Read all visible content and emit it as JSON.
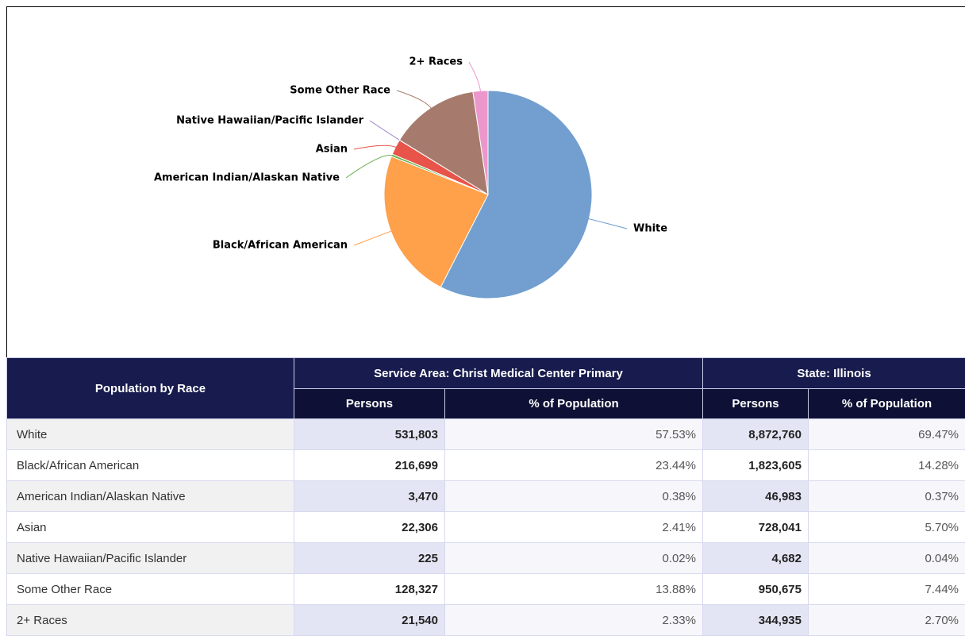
{
  "chart_data": {
    "type": "pie",
    "categories": [
      "White",
      "Black/African American",
      "American Indian/Alaskan Native",
      "Asian",
      "Native Hawaiian/Pacific Islander",
      "Some Other Race",
      "2+ Races"
    ],
    "values": [
      57.53,
      23.44,
      0.38,
      2.41,
      0.02,
      13.88,
      2.33
    ],
    "colors": [
      "#729fcf",
      "#ffa04a",
      "#6ab04c",
      "#e8534a",
      "#9b7fc8",
      "#a67b6d",
      "#ec97cc"
    ]
  },
  "table": {
    "header": {
      "row_label": "Population by Race",
      "groups": [
        "Service Area: Christ Medical Center Primary",
        "State: Illinois"
      ],
      "subheaders": [
        "Persons",
        "% of Population",
        "Persons",
        "% of Population"
      ]
    },
    "rows": [
      [
        "White",
        "531,803",
        "57.53%",
        "8,872,760",
        "69.47%"
      ],
      [
        "Black/African American",
        "216,699",
        "23.44%",
        "1,823,605",
        "14.28%"
      ],
      [
        "American Indian/Alaskan Native",
        "3,470",
        "0.38%",
        "46,983",
        "0.37%"
      ],
      [
        "Asian",
        "22,306",
        "2.41%",
        "728,041",
        "5.70%"
      ],
      [
        "Native Hawaiian/Pacific Islander",
        "225",
        "0.02%",
        "4,682",
        "0.04%"
      ],
      [
        "Some Other Race",
        "128,327",
        "13.88%",
        "950,675",
        "7.44%"
      ],
      [
        "2+ Races",
        "21,540",
        "2.33%",
        "344,935",
        "2.70%"
      ]
    ]
  }
}
